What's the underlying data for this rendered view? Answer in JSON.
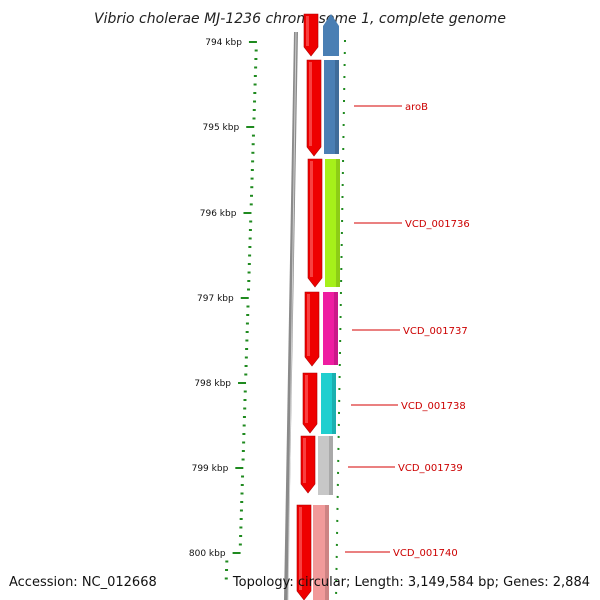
{
  "title": "Vibrio cholerae MJ-1236 chromosome 1, complete genome",
  "footer": {
    "accession": "Accession: NC_012668",
    "summary": "Topology: circular; Length: 3,149,584 bp; Genes: 2,884"
  },
  "scale": {
    "unit": "kbp",
    "major_ticks": [
      "794 kbp",
      "795 kbp",
      "796 kbp",
      "797 kbp",
      "798 kbp",
      "799 kbp",
      "800 kbp"
    ]
  },
  "colors": {
    "backbone": "#8a8a8a",
    "tick": "#1f8a1f",
    "label_line": "#d40000",
    "label_text": "#cc0000"
  },
  "genes": [
    {
      "label": "aroB",
      "color": "#4a7fb4"
    },
    {
      "label": "VCD_001736",
      "color": "#a6f01a"
    },
    {
      "label": "VCD_001737",
      "color": "#ee1da1"
    },
    {
      "label": "VCD_001738",
      "color": "#1fcfcf"
    },
    {
      "label": "VCD_001739",
      "color": "#c7c7c7"
    },
    {
      "label": "VCD_001740",
      "color": "#f19a9a"
    }
  ],
  "cds_color": "#ee0000"
}
